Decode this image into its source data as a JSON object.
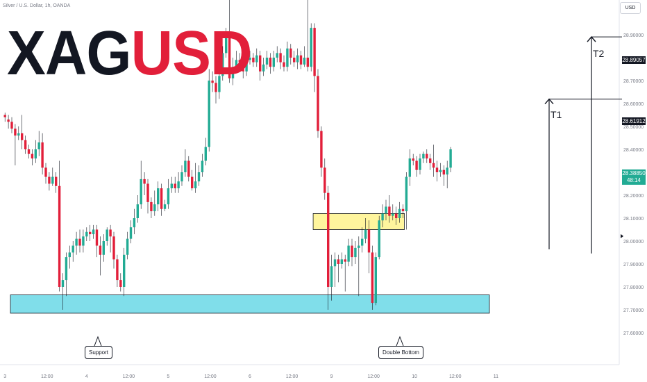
{
  "header": {
    "symbol_line": "Silver / U.S. Dollar, 1h, OANDA",
    "logo_part1": "XAG",
    "logo_part2": "USD",
    "currency_button": "USD"
  },
  "colors": {
    "up": "#22ab94",
    "down": "#e21f3a",
    "support_zone": "#80deea",
    "resistance_zone": "#fff59d",
    "text": "#131722",
    "axis_text": "#787b86"
  },
  "annotations": {
    "support_label": "Support",
    "double_bottom_label": "Double Bottom",
    "t1_label": "T1",
    "t2_label": "T2",
    "t1_price": "28.61912",
    "t2_price": "28.89057",
    "last_price": "28.38850",
    "countdown": "48:14"
  },
  "chart_data": {
    "type": "candlestick",
    "title": "Silver / U.S. Dollar, 1h, OANDA",
    "y_range": [
      27.56,
      29.2
    ],
    "y_ticks": [
      "28.90000",
      "28.80000",
      "28.70000",
      "28.60000",
      "28.50000",
      "28.40000",
      "28.30000",
      "28.20000",
      "28.10000",
      "28.00000",
      "27.90000",
      "27.80000",
      "27.70000",
      "27.60000"
    ],
    "y_tick_values": [
      28.9,
      28.8,
      28.7,
      28.6,
      28.5,
      28.4,
      28.3,
      28.2,
      28.1,
      28.0,
      27.9,
      27.8,
      27.7,
      27.6
    ],
    "x_ticks": [
      {
        "label": "3",
        "index": 0
      },
      {
        "label": "12:00",
        "index": 12
      },
      {
        "label": "4",
        "index": 24
      },
      {
        "label": "12:00",
        "index": 36
      },
      {
        "label": "5",
        "index": 48
      },
      {
        "label": "12:00",
        "index": 60
      },
      {
        "label": "6",
        "index": 72
      },
      {
        "label": "12:00",
        "index": 84
      },
      {
        "label": "9",
        "index": 96
      },
      {
        "label": "12:00",
        "index": 108
      },
      {
        "label": "10",
        "index": 120
      },
      {
        "label": "12:00",
        "index": 132
      },
      {
        "label": "11",
        "index": 144
      }
    ],
    "candles": [
      [
        28.55,
        28.54,
        28.56,
        28.52
      ],
      [
        28.53,
        28.52,
        28.55,
        28.49
      ],
      [
        28.52,
        28.49,
        28.54,
        28.47
      ],
      [
        28.49,
        28.46,
        28.51,
        28.33
      ],
      [
        28.46,
        28.47,
        28.5,
        28.44
      ],
      [
        28.47,
        28.44,
        28.55,
        28.4
      ],
      [
        28.44,
        28.4,
        28.46,
        28.38
      ],
      [
        28.4,
        28.38,
        28.42,
        28.36
      ],
      [
        28.38,
        28.36,
        28.4,
        28.33
      ],
      [
        28.36,
        28.4,
        28.44,
        28.34
      ],
      [
        28.4,
        28.43,
        28.48,
        28.37
      ],
      [
        28.43,
        28.32,
        28.47,
        28.29
      ],
      [
        28.32,
        28.28,
        28.34,
        28.25
      ],
      [
        28.28,
        28.25,
        28.3,
        28.22
      ],
      [
        28.25,
        28.28,
        28.32,
        28.24
      ],
      [
        28.28,
        28.24,
        28.3,
        28.21
      ],
      [
        28.24,
        27.8,
        28.35,
        27.78
      ],
      [
        27.8,
        27.83,
        27.86,
        27.7
      ],
      [
        27.83,
        27.93,
        27.95,
        27.76
      ],
      [
        27.93,
        27.95,
        27.98,
        27.88
      ],
      [
        27.95,
        27.98,
        28.0,
        27.91
      ],
      [
        27.98,
        28.01,
        28.04,
        27.94
      ],
      [
        28.01,
        27.98,
        28.05,
        27.95
      ],
      [
        27.98,
        28.02,
        28.05,
        27.95
      ],
      [
        28.02,
        28.04,
        28.06,
        28.0
      ],
      [
        28.04,
        28.03,
        28.07,
        28.0
      ],
      [
        28.03,
        28.05,
        28.07,
        28.01
      ],
      [
        28.05,
        27.98,
        28.07,
        27.93
      ],
      [
        27.98,
        27.94,
        28.02,
        27.85
      ],
      [
        27.94,
        28.0,
        28.03,
        27.91
      ],
      [
        28.0,
        28.05,
        28.06,
        27.98
      ],
      [
        28.05,
        28.02,
        28.07,
        27.95
      ],
      [
        28.02,
        27.92,
        28.04,
        27.88
      ],
      [
        27.92,
        27.83,
        27.94,
        27.8
      ],
      [
        27.83,
        27.8,
        27.86,
        27.78
      ],
      [
        27.8,
        27.94,
        27.97,
        27.76
      ],
      [
        27.94,
        28.01,
        28.04,
        27.92
      ],
      [
        28.01,
        28.06,
        28.09,
        27.99
      ],
      [
        28.06,
        28.1,
        28.14,
        28.03
      ],
      [
        28.1,
        28.16,
        28.2,
        28.08
      ],
      [
        28.16,
        28.27,
        28.35,
        28.14
      ],
      [
        28.27,
        28.25,
        28.3,
        28.2
      ],
      [
        28.25,
        28.17,
        28.27,
        28.12
      ],
      [
        28.17,
        28.13,
        28.19,
        28.1
      ],
      [
        28.13,
        28.16,
        28.22,
        28.11
      ],
      [
        28.16,
        28.23,
        28.26,
        28.13
      ],
      [
        28.23,
        28.14,
        28.25,
        28.11
      ],
      [
        28.14,
        28.16,
        28.18,
        28.13
      ],
      [
        28.16,
        28.23,
        28.27,
        28.14
      ],
      [
        28.23,
        28.25,
        28.28,
        28.21
      ],
      [
        28.25,
        28.23,
        28.28,
        28.21
      ],
      [
        28.23,
        28.26,
        28.3,
        28.21
      ],
      [
        28.26,
        28.3,
        28.33,
        28.24
      ],
      [
        28.3,
        28.35,
        28.4,
        28.28
      ],
      [
        28.35,
        28.28,
        28.37,
        28.26
      ],
      [
        28.28,
        28.23,
        28.31,
        28.22
      ],
      [
        28.23,
        28.26,
        28.34,
        28.21
      ],
      [
        28.26,
        28.3,
        28.33,
        28.24
      ],
      [
        28.3,
        28.35,
        28.38,
        28.28
      ],
      [
        28.35,
        28.41,
        28.45,
        28.33
      ],
      [
        28.41,
        28.7,
        28.75,
        28.39
      ],
      [
        28.7,
        28.69,
        28.74,
        28.65
      ],
      [
        28.69,
        28.65,
        28.72,
        28.6
      ],
      [
        28.65,
        28.72,
        28.76,
        28.62
      ],
      [
        28.72,
        28.82,
        28.85,
        28.7
      ],
      [
        28.82,
        28.9,
        28.93,
        28.8
      ],
      [
        28.9,
        28.71,
        29.3,
        28.69
      ],
      [
        28.71,
        28.76,
        28.8,
        28.68
      ],
      [
        28.76,
        28.79,
        28.83,
        28.74
      ],
      [
        28.79,
        28.78,
        28.82,
        28.74
      ],
      [
        28.78,
        28.74,
        28.8,
        28.71
      ],
      [
        28.74,
        28.79,
        28.82,
        28.72
      ],
      [
        28.79,
        28.8,
        28.83,
        28.77
      ],
      [
        28.8,
        28.78,
        28.82,
        28.76
      ],
      [
        28.78,
        28.81,
        28.84,
        28.76
      ],
      [
        28.81,
        28.74,
        28.83,
        28.7
      ],
      [
        28.74,
        28.77,
        28.8,
        28.72
      ],
      [
        28.77,
        28.8,
        28.83,
        28.75
      ],
      [
        28.8,
        28.76,
        28.82,
        28.73
      ],
      [
        28.76,
        28.8,
        28.83,
        28.74
      ],
      [
        28.8,
        28.82,
        28.85,
        28.78
      ],
      [
        28.82,
        28.78,
        28.84,
        28.75
      ],
      [
        28.78,
        28.76,
        28.81,
        28.74
      ],
      [
        28.76,
        28.84,
        28.87,
        28.74
      ],
      [
        28.84,
        28.8,
        28.86,
        28.77
      ],
      [
        28.8,
        28.78,
        28.83,
        28.76
      ],
      [
        28.78,
        28.81,
        28.84,
        28.75
      ],
      [
        28.81,
        28.77,
        28.83,
        28.75
      ],
      [
        28.77,
        28.8,
        28.85,
        28.76
      ],
      [
        28.8,
        28.76,
        29.2,
        28.74
      ],
      [
        28.76,
        28.93,
        28.95,
        28.74
      ],
      [
        28.93,
        28.72,
        28.95,
        28.65
      ],
      [
        28.72,
        28.48,
        28.75,
        28.45
      ],
      [
        28.48,
        28.32,
        28.5,
        28.28
      ],
      [
        28.32,
        28.21,
        28.36,
        28.18
      ],
      [
        28.21,
        27.8,
        28.24,
        27.7
      ],
      [
        27.8,
        27.89,
        27.94,
        27.74
      ],
      [
        27.89,
        27.92,
        27.95,
        27.8
      ],
      [
        27.92,
        27.9,
        27.94,
        27.82
      ],
      [
        27.9,
        27.92,
        27.95,
        27.88
      ],
      [
        27.92,
        27.91,
        27.94,
        27.78
      ],
      [
        27.91,
        27.98,
        28.01,
        27.89
      ],
      [
        27.98,
        27.93,
        28.01,
        27.89
      ],
      [
        27.93,
        27.97,
        28.0,
        27.9
      ],
      [
        27.97,
        27.98,
        28.02,
        27.76
      ],
      [
        27.98,
        28.01,
        28.06,
        27.95
      ],
      [
        28.01,
        28.05,
        28.1,
        27.99
      ],
      [
        28.05,
        27.95,
        28.09,
        27.86
      ],
      [
        27.95,
        27.73,
        27.98,
        27.7
      ],
      [
        27.73,
        27.93,
        27.95,
        27.72
      ],
      [
        27.93,
        28.09,
        28.11,
        27.92
      ],
      [
        28.09,
        28.12,
        28.16,
        28.06
      ],
      [
        28.12,
        28.15,
        28.18,
        28.09
      ],
      [
        28.15,
        28.11,
        28.2,
        28.08
      ],
      [
        28.11,
        28.12,
        28.16,
        28.09
      ],
      [
        28.12,
        28.1,
        28.15,
        28.07
      ],
      [
        28.1,
        28.14,
        28.17,
        28.08
      ],
      [
        28.14,
        28.13,
        28.16,
        28.1
      ],
      [
        28.13,
        28.28,
        28.3,
        28.05
      ],
      [
        28.28,
        28.36,
        28.4,
        28.24
      ],
      [
        28.36,
        28.35,
        28.38,
        28.33
      ],
      [
        28.35,
        28.31,
        28.37,
        28.28
      ],
      [
        28.31,
        28.36,
        28.38,
        28.29
      ],
      [
        28.36,
        28.38,
        28.39,
        28.34
      ],
      [
        28.38,
        28.36,
        28.4,
        28.34
      ],
      [
        28.36,
        28.34,
        28.38,
        28.31
      ],
      [
        28.34,
        28.32,
        28.42,
        28.28
      ],
      [
        28.32,
        28.3,
        28.35,
        28.26
      ],
      [
        28.3,
        28.31,
        28.34,
        28.28
      ],
      [
        28.31,
        28.29,
        28.33,
        28.24
      ],
      [
        28.29,
        28.32,
        28.35,
        28.23
      ],
      [
        28.32,
        28.4,
        28.41,
        28.3
      ]
    ],
    "zones": [
      {
        "type": "support",
        "from_index": 2,
        "to_index": 142,
        "price_low": 27.685,
        "price_high": 27.765
      },
      {
        "type": "resistance",
        "from_index": 91,
        "to_index": 117,
        "price_low": 28.05,
        "price_high": 28.12
      }
    ],
    "targets": [
      {
        "label": "T1",
        "price": 28.61912
      },
      {
        "label": "T2",
        "price": 28.89057
      }
    ],
    "last_price": 28.3885
  }
}
